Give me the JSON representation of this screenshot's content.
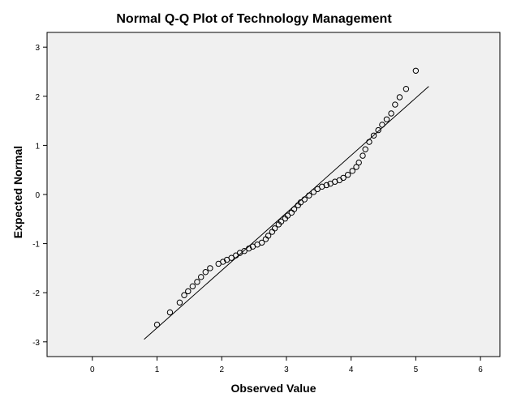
{
  "chart_data": {
    "type": "scatter",
    "title": "Normal Q-Q Plot of Technology Management",
    "xlabel": "Observed Value",
    "ylabel": "Expected Normal",
    "xlim": [
      -0.7,
      6.3
    ],
    "ylim": [
      -3.3,
      3.3
    ],
    "xticks": [
      0,
      1,
      2,
      3,
      4,
      5,
      6
    ],
    "yticks": [
      -3,
      -2,
      -1,
      0,
      1,
      2,
      3
    ],
    "grid": false,
    "reference_line": {
      "x": [
        0.8,
        5.2
      ],
      "y": [
        -2.95,
        2.2
      ]
    },
    "series": [
      {
        "points": [
          [
            1.0,
            -2.65
          ],
          [
            1.2,
            -2.4
          ],
          [
            1.35,
            -2.2
          ],
          [
            1.42,
            -2.05
          ],
          [
            1.48,
            -1.97
          ],
          [
            1.55,
            -1.87
          ],
          [
            1.62,
            -1.78
          ],
          [
            1.68,
            -1.68
          ],
          [
            1.75,
            -1.58
          ],
          [
            1.82,
            -1.5
          ],
          [
            1.95,
            -1.41
          ],
          [
            2.02,
            -1.37
          ],
          [
            2.08,
            -1.33
          ],
          [
            2.15,
            -1.29
          ],
          [
            2.22,
            -1.24
          ],
          [
            2.28,
            -1.19
          ],
          [
            2.35,
            -1.15
          ],
          [
            2.42,
            -1.1
          ],
          [
            2.48,
            -1.06
          ],
          [
            2.55,
            -1.02
          ],
          [
            2.62,
            -0.98
          ],
          [
            2.68,
            -0.91
          ],
          [
            2.72,
            -0.84
          ],
          [
            2.78,
            -0.76
          ],
          [
            2.82,
            -0.69
          ],
          [
            2.88,
            -0.61
          ],
          [
            2.92,
            -0.55
          ],
          [
            2.98,
            -0.49
          ],
          [
            3.02,
            -0.43
          ],
          [
            3.08,
            -0.37
          ],
          [
            3.12,
            -0.3
          ],
          [
            3.18,
            -0.22
          ],
          [
            3.22,
            -0.16
          ],
          [
            3.28,
            -0.1
          ],
          [
            3.35,
            -0.02
          ],
          [
            3.42,
            0.05
          ],
          [
            3.48,
            0.11
          ],
          [
            3.55,
            0.16
          ],
          [
            3.62,
            0.19
          ],
          [
            3.68,
            0.22
          ],
          [
            3.75,
            0.26
          ],
          [
            3.82,
            0.29
          ],
          [
            3.88,
            0.34
          ],
          [
            3.95,
            0.4
          ],
          [
            4.02,
            0.48
          ],
          [
            4.08,
            0.56
          ],
          [
            4.12,
            0.65
          ],
          [
            4.18,
            0.79
          ],
          [
            4.22,
            0.92
          ],
          [
            4.28,
            1.07
          ],
          [
            4.35,
            1.2
          ],
          [
            4.42,
            1.31
          ],
          [
            4.48,
            1.42
          ],
          [
            4.55,
            1.53
          ],
          [
            4.62,
            1.65
          ],
          [
            4.68,
            1.83
          ],
          [
            4.75,
            1.98
          ],
          [
            4.85,
            2.15
          ],
          [
            5.0,
            2.52
          ]
        ]
      }
    ]
  }
}
